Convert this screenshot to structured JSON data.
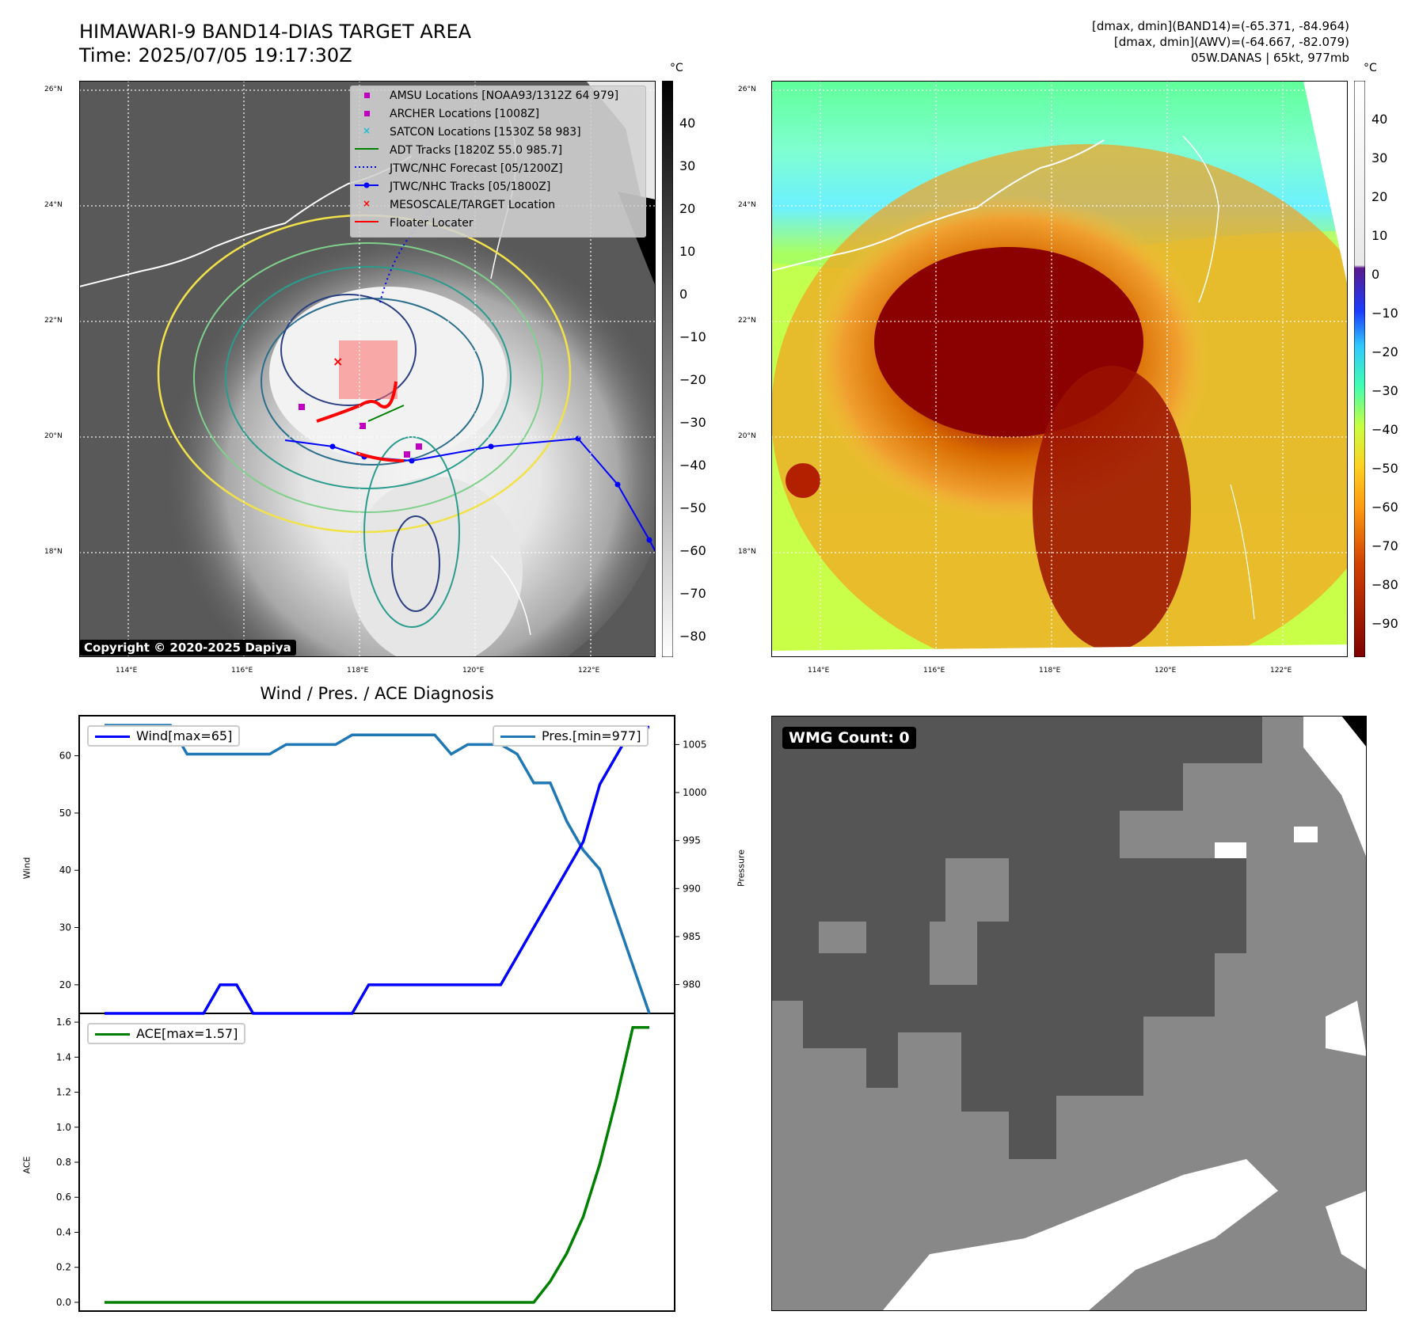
{
  "header": {
    "title": "HIMAWARI-9 BAND14-DIAS TARGET AREA",
    "time": "Time: 2025/07/05 19:17:30Z",
    "dmax_band14": "[dmax, dmin](BAND14)=(-65.371, -84.964)",
    "dmax_awv": "[dmax, dmin](AWV)=(-64.667, -82.079)",
    "storm": "05W.DANAS | 65kt, 977mb"
  },
  "map": {
    "lat_labels": [
      "26°N",
      "24°N",
      "22°N",
      "20°N",
      "18°N"
    ],
    "lon_labels": [
      "114°E",
      "116°E",
      "118°E",
      "120°E",
      "122°E"
    ],
    "copyright": "Copyright © 2020-2025 Dapiya",
    "legend": [
      {
        "label": "AMSU Locations [NOAA93/1312Z 64 979]",
        "color": "#bf00bf",
        "marker": "square"
      },
      {
        "label": "ARCHER Locations [1008Z]",
        "color": "#bf00bf",
        "marker": "square"
      },
      {
        "label": "SATCON Locations [1530Z 58 983]",
        "color": "#17becf",
        "marker": "x"
      },
      {
        "label": "ADT Tracks [1820Z 55.0 985.7]",
        "color": "#008000",
        "marker": "line"
      },
      {
        "label": "JTWC/NHC Forecast [05/1200Z]",
        "color": "#0000ff",
        "marker": "dotted"
      },
      {
        "label": "JTWC/NHC Tracks [05/1800Z]",
        "color": "#0000ff",
        "marker": "line-dot"
      },
      {
        "label": "MESOSCALE/TARGET Location",
        "color": "#ff0000",
        "marker": "x"
      },
      {
        "label": "Floater Locater",
        "color": "#ff0000",
        "marker": "line"
      }
    ],
    "gray_colorbar": {
      "unit": "°C",
      "ticks": [
        "40",
        "30",
        "20",
        "10",
        "0",
        "−10",
        "−20",
        "−30",
        "−40",
        "−50",
        "−60",
        "−70",
        "−80"
      ]
    },
    "color_colorbar": {
      "unit": "°C",
      "ticks": [
        "40",
        "30",
        "20",
        "10",
        "0",
        "−10",
        "−20",
        "−30",
        "−40",
        "−50",
        "−60",
        "−70",
        "−80",
        "−90"
      ]
    }
  },
  "chart_data": [
    {
      "type": "line",
      "title": "Wind / Pres. / ACE Diagnosis",
      "ylabel": "Wind",
      "y2label": "Pressure",
      "ylim": [
        15,
        67
      ],
      "y2lim": [
        977,
        1008
      ],
      "yticks": [
        20,
        30,
        40,
        50,
        60
      ],
      "y2ticks": [
        980,
        985,
        990,
        995,
        1000,
        1005
      ],
      "x": [
        0,
        1,
        2,
        3,
        4,
        5,
        6,
        7,
        8,
        9,
        10,
        11,
        12,
        13,
        14,
        15,
        16,
        17,
        18,
        19,
        20,
        21,
        22,
        23,
        24,
        25,
        26,
        27,
        28,
        29,
        30,
        31,
        32,
        33
      ],
      "series": [
        {
          "name": "Wind[max=65]",
          "color": "#0000ff",
          "axis": "left",
          "values": [
            15,
            15,
            15,
            15,
            15,
            15,
            15,
            20,
            20,
            15,
            15,
            15,
            15,
            15,
            15,
            15,
            20,
            20,
            20,
            20,
            20,
            20,
            20,
            20,
            20,
            25,
            30,
            35,
            40,
            45,
            55,
            60,
            65,
            65
          ]
        },
        {
          "name": "Pres.[min=977]",
          "color": "#1f77b4",
          "axis": "right",
          "values": [
            1007,
            1007,
            1007,
            1007,
            1007,
            1004,
            1004,
            1004,
            1004,
            1004,
            1004,
            1005,
            1005,
            1005,
            1005,
            1006,
            1006,
            1006,
            1006,
            1006,
            1006,
            1004,
            1005,
            1005,
            1005,
            1004,
            1001,
            1001,
            997,
            994,
            992,
            987,
            982,
            977
          ]
        }
      ]
    },
    {
      "type": "line",
      "ylabel": "ACE",
      "ylim": [
        -0.05,
        1.65
      ],
      "yticks": [
        "0.0",
        "0.2",
        "0.4",
        "0.6",
        "0.8",
        "1.0",
        "1.2",
        "1.4",
        "1.6"
      ],
      "x": [
        0,
        1,
        2,
        3,
        4,
        5,
        6,
        7,
        8,
        9,
        10,
        11,
        12,
        13,
        14,
        15,
        16,
        17,
        18,
        19,
        20,
        21,
        22,
        23,
        24,
        25,
        26,
        27,
        28,
        29,
        30,
        31,
        32,
        33
      ],
      "series": [
        {
          "name": "ACE[max=1.57]",
          "color": "#008000",
          "axis": "left",
          "values": [
            0,
            0,
            0,
            0,
            0,
            0,
            0,
            0,
            0,
            0,
            0,
            0,
            0,
            0,
            0,
            0,
            0,
            0,
            0,
            0,
            0,
            0,
            0,
            0,
            0,
            0,
            0,
            0.12,
            0.28,
            0.49,
            0.79,
            1.16,
            1.57,
            1.57
          ]
        }
      ]
    }
  ],
  "wmg": {
    "label": "WMG Count: 0"
  }
}
